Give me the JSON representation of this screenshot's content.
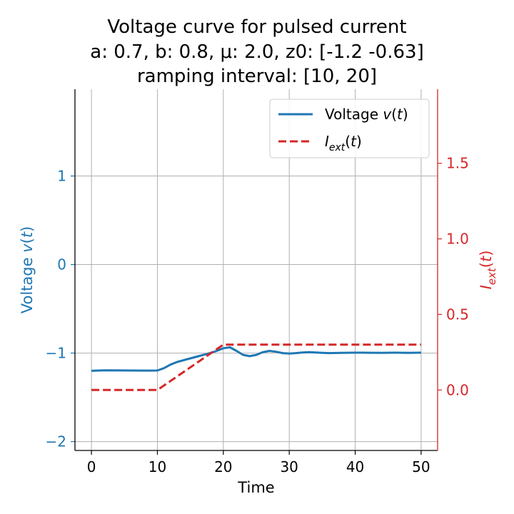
{
  "chart_data": {
    "type": "line",
    "title_lines": [
      "Voltage curve for pulsed current",
      "a: 0.7, b: 0.8, μ: 2.0, z0: [-1.2  -0.63]",
      "ramping interval: [10, 20]"
    ],
    "xlabel": "Time",
    "ylabel_left": "Voltage v(t)",
    "ylabel_right": "I_ext(t)",
    "xlim": [
      -2.5,
      52.5
    ],
    "ylim_left": [
      -2.1,
      1.98
    ],
    "ylim_right": [
      -0.4,
      1.99
    ],
    "x_ticks": [
      0,
      10,
      20,
      30,
      40,
      50
    ],
    "x_tick_labels": [
      "0",
      "10",
      "20",
      "30",
      "40",
      "50"
    ],
    "left_ticks": [
      -2,
      -1,
      0,
      1
    ],
    "left_tick_labels": [
      "−2",
      "−1",
      "0",
      "1"
    ],
    "right_ticks": [
      0.0,
      0.5,
      1.0,
      1.5
    ],
    "right_tick_labels": [
      "0.0",
      "0.5",
      "1.0",
      "1.5"
    ],
    "grid": true,
    "legend_position": "top-right",
    "colors": {
      "voltage": "#1f77b4",
      "current": "#d62728",
      "grid": "#b0b0b0"
    },
    "series": [
      {
        "name": "Voltage v(t)",
        "axis": "left",
        "style": "solid",
        "x": [
          0,
          2,
          4,
          6,
          8,
          10,
          11,
          12,
          13,
          14,
          15,
          16,
          17,
          18,
          19,
          20,
          21,
          22,
          23,
          24,
          25,
          26,
          27,
          28,
          29,
          30,
          31,
          32,
          33,
          34,
          35,
          36,
          38,
          40,
          42,
          44,
          46,
          48,
          50
        ],
        "y": [
          -1.2,
          -1.195,
          -1.196,
          -1.197,
          -1.198,
          -1.197,
          -1.17,
          -1.13,
          -1.1,
          -1.08,
          -1.06,
          -1.04,
          -1.02,
          -1.0,
          -0.975,
          -0.945,
          -0.935,
          -0.975,
          -1.02,
          -1.035,
          -1.02,
          -0.99,
          -0.975,
          -0.985,
          -1.0,
          -1.005,
          -1.0,
          -0.993,
          -0.99,
          -0.993,
          -0.997,
          -1.0,
          -0.998,
          -0.995,
          -0.996,
          -0.997,
          -0.995,
          -0.997,
          -0.995
        ]
      },
      {
        "name": "I_ext(t)",
        "axis": "right",
        "style": "dashed",
        "x": [
          0,
          10,
          20,
          50
        ],
        "y": [
          0.0,
          0.0,
          0.3,
          0.3
        ]
      }
    ]
  }
}
